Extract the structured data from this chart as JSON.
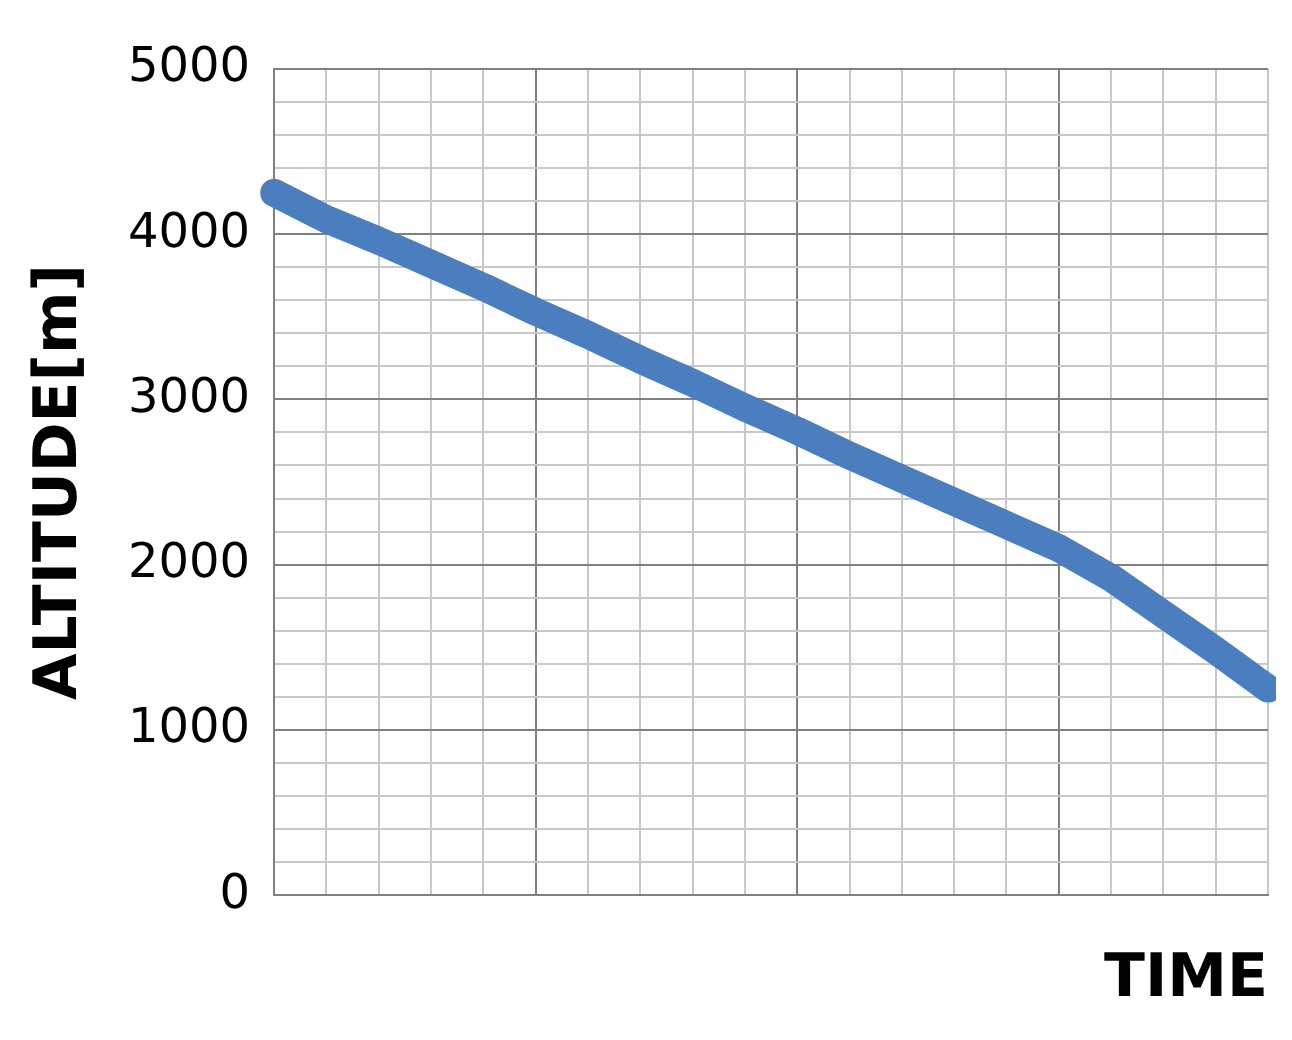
{
  "chart_data": {
    "type": "line",
    "xlabel": "TIME",
    "ylabel": "ALTITUDE[m]",
    "categories": [
      null,
      null,
      null,
      null,
      null,
      null,
      null,
      null,
      null,
      null,
      null,
      null,
      null,
      null,
      null,
      null,
      null,
      null,
      null,
      null
    ],
    "series": [
      {
        "color": "#4a7ebf",
        "values": [
          4250,
          4090,
          3960,
          3820,
          3680,
          3530,
          3390,
          3240,
          3100,
          2950,
          2810,
          2660,
          2520,
          2380,
          2240,
          2100,
          1920,
          1700,
          1480,
          1250
        ]
      }
    ],
    "ylim": [
      0,
      5000
    ],
    "yticks": [
      0,
      {
        "value": 200,
        "label": null
      },
      {
        "value": 400,
        "label": null
      },
      {
        "value": 600,
        "label": null
      },
      {
        "value": 800,
        "label": null
      },
      1000,
      {
        "value": 1200,
        "label": null
      },
      {
        "value": 1400,
        "label": null
      },
      {
        "value": 1600,
        "label": null
      },
      {
        "value": 1800,
        "label": null
      },
      2000,
      {
        "value": 2200,
        "label": null
      },
      {
        "value": 2400,
        "label": null
      },
      {
        "value": 2600,
        "label": null
      },
      {
        "value": 2800,
        "label": null
      },
      3000,
      {
        "value": 3200,
        "label": null
      },
      {
        "value": 3400,
        "label": null
      },
      {
        "value": 3600,
        "label": null
      },
      {
        "value": 3800,
        "label": null
      },
      4000,
      {
        "value": 4200,
        "label": null
      },
      {
        "value": 4400,
        "label": null
      },
      {
        "value": 4600,
        "label": null
      },
      {
        "value": 4800,
        "label": null
      },
      5000
    ],
    "grid": true,
    "legend": false,
    "marker": "none",
    "line_style": "solid"
  }
}
